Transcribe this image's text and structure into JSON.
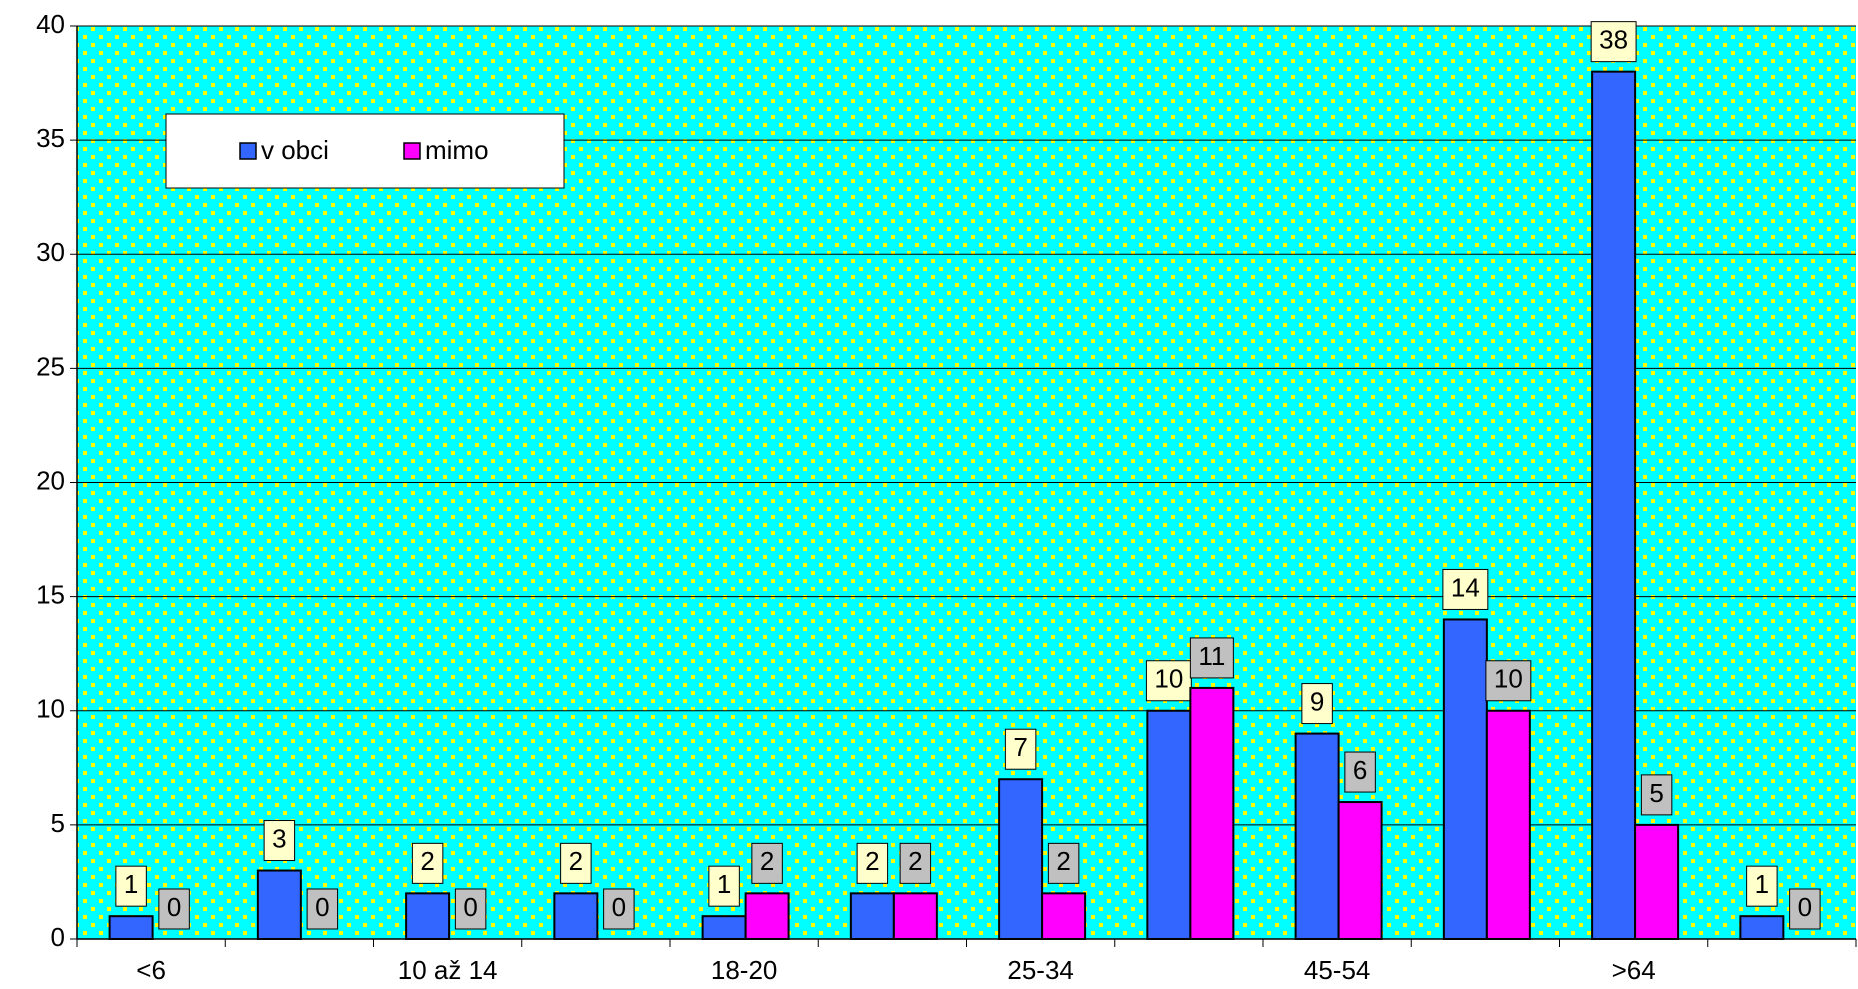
{
  "chart_data": {
    "type": "bar",
    "categories": [
      "<6",
      null,
      "10 až 14",
      null,
      "18-20",
      null,
      "25-34",
      null,
      "45-54",
      null,
      ">64",
      null
    ],
    "series": [
      {
        "name": "v obci",
        "color": "#3366ff",
        "label_bg": "#ffffcc",
        "values": [
          1,
          3,
          2,
          2,
          1,
          2,
          7,
          10,
          9,
          14,
          38,
          1
        ]
      },
      {
        "name": "mimo",
        "color": "#ff00ff",
        "label_bg": "#c0c0c0",
        "values": [
          0,
          0,
          0,
          0,
          2,
          2,
          2,
          11,
          6,
          10,
          5,
          0
        ]
      }
    ],
    "ylim": [
      0,
      40
    ],
    "yticks": [
      0,
      5,
      10,
      15,
      20,
      25,
      30,
      35,
      40
    ],
    "grid": true,
    "legend": "upper left",
    "background": "#00ffff"
  }
}
